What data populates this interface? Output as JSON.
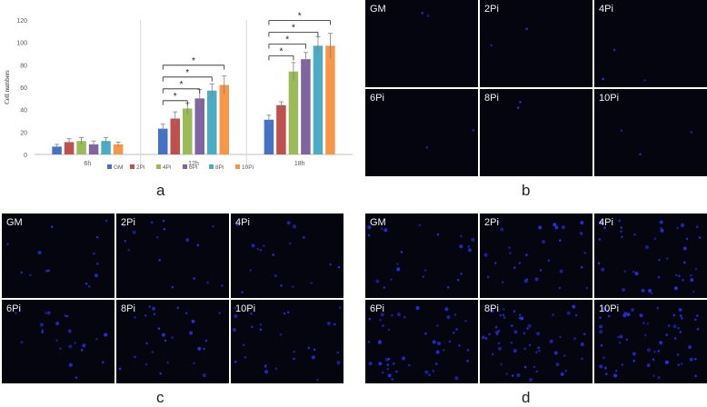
{
  "chart_data": {
    "type": "bar",
    "categories": [
      "6h",
      "12h",
      "18h"
    ],
    "ylabel": "Cell numbers",
    "ylim": [
      0,
      120
    ],
    "yticks": [
      0,
      20,
      40,
      60,
      80,
      100,
      120
    ],
    "legend_position": "bottom",
    "grid": false,
    "series": [
      {
        "name": "GM",
        "color": "#4472c4",
        "values": [
          7,
          23,
          31
        ],
        "errors": [
          2,
          4,
          4
        ]
      },
      {
        "name": "2Pi",
        "color": "#c0504d",
        "values": [
          11,
          32,
          44
        ],
        "errors": [
          3,
          6,
          3
        ]
      },
      {
        "name": "4Pi",
        "color": "#9bbb59",
        "values": [
          12,
          41,
          74
        ],
        "errors": [
          3,
          5,
          8
        ]
      },
      {
        "name": "6Pi",
        "color": "#8064a2",
        "values": [
          9,
          50,
          85
        ],
        "errors": [
          3,
          8,
          6
        ]
      },
      {
        "name": "8Pi",
        "color": "#4bacc6",
        "values": [
          12,
          57,
          97
        ],
        "errors": [
          3,
          6,
          8
        ]
      },
      {
        "name": "10Pi",
        "color": "#f79646",
        "values": [
          9,
          62,
          97
        ],
        "errors": [
          2,
          8,
          11
        ]
      }
    ],
    "significance": [
      {
        "group": "12h",
        "from": "GM",
        "to": "4Pi",
        "label": "*"
      },
      {
        "group": "12h",
        "from": "GM",
        "to": "6Pi",
        "label": "*"
      },
      {
        "group": "12h",
        "from": "GM",
        "to": "8Pi",
        "label": "*"
      },
      {
        "group": "12h",
        "from": "GM",
        "to": "10Pi",
        "label": "*"
      },
      {
        "group": "18h",
        "from": "GM",
        "to": "4Pi",
        "label": "*"
      },
      {
        "group": "18h",
        "from": "GM",
        "to": "6Pi",
        "label": "*"
      },
      {
        "group": "18h",
        "from": "GM",
        "to": "8Pi",
        "label": "*"
      },
      {
        "group": "18h",
        "from": "GM",
        "to": "10Pi",
        "label": "*"
      }
    ]
  },
  "panels": {
    "a": "a",
    "b": "b",
    "c": "c",
    "d": "d"
  },
  "micrograph_labels": [
    "GM",
    "2Pi",
    "4Pi",
    "6Pi",
    "8Pi",
    "10Pi"
  ],
  "cell_counts": {
    "b": [
      2,
      2,
      3,
      2,
      2,
      3
    ],
    "c": [
      14,
      16,
      18,
      22,
      26,
      28
    ],
    "d": [
      22,
      30,
      40,
      46,
      55,
      60
    ]
  },
  "colors": {
    "micrograph_background": "#050510",
    "nucleus": "#2a2ee8"
  }
}
